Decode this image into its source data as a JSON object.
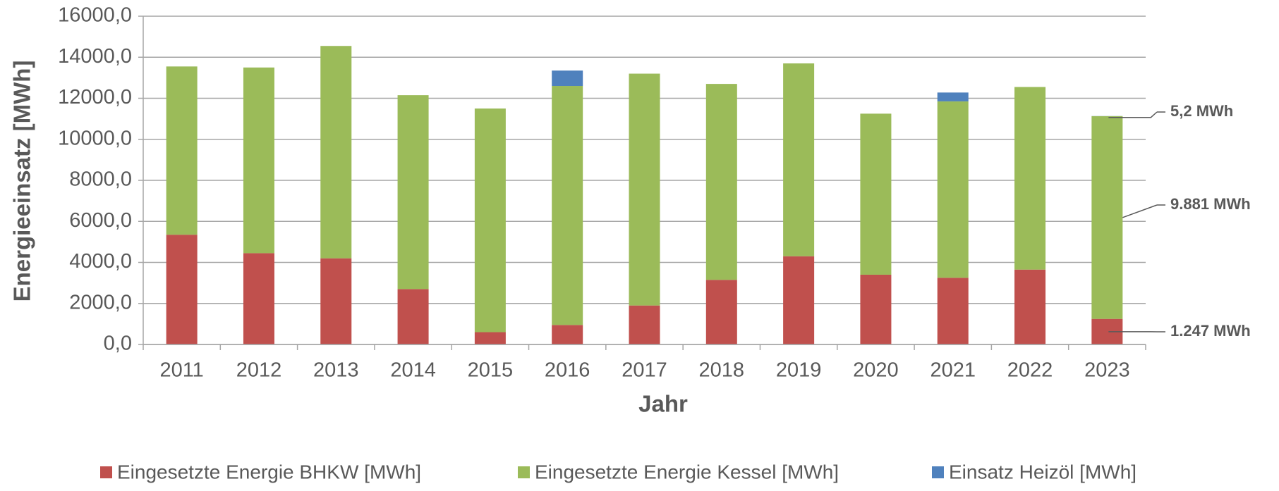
{
  "chart_data": {
    "type": "stacked_bar",
    "x_label": "Jahr",
    "y_label": "Energieeinsatz [MWh]",
    "categories": [
      "2011",
      "2012",
      "2013",
      "2014",
      "2015",
      "2016",
      "2017",
      "2018",
      "2019",
      "2020",
      "2021",
      "2022",
      "2023"
    ],
    "series": [
      {
        "name": "Eingesetzte Energie BHKW [MWh]",
        "color": "#c0504d",
        "values": [
          5350,
          4450,
          4200,
          2700,
          600,
          950,
          1900,
          3150,
          4300,
          3400,
          3250,
          3650,
          1247
        ],
        "value_labels": [
          null,
          null,
          null,
          null,
          null,
          null,
          null,
          null,
          null,
          null,
          null,
          null,
          "1.247 MWh"
        ]
      },
      {
        "name": "Eingesetzte Energie Kessel [MWh]",
        "color": "#9bbb59",
        "values": [
          8200,
          9050,
          10350,
          9450,
          10900,
          11650,
          11300,
          9550,
          9400,
          7850,
          8600,
          8900,
          9881
        ],
        "value_labels": [
          null,
          null,
          null,
          null,
          null,
          null,
          null,
          null,
          null,
          null,
          null,
          null,
          "9.881 MWh"
        ]
      },
      {
        "name": "Einsatz Heizöl [MWh]",
        "color": "#4f81bd",
        "values": [
          0,
          0,
          0,
          0,
          0,
          750,
          0,
          0,
          0,
          0,
          430,
          0,
          5.2
        ],
        "value_labels": [
          null,
          null,
          null,
          null,
          null,
          null,
          null,
          null,
          null,
          null,
          null,
          null,
          "5,2 MWh"
        ]
      }
    ],
    "ylim": [
      0,
      16000
    ],
    "yticks": [
      {
        "value": 0,
        "label": "0,0"
      },
      {
        "value": 2000,
        "label": "2000,0"
      },
      {
        "value": 4000,
        "label": "4000,0"
      },
      {
        "value": 6000,
        "label": "6000,0"
      },
      {
        "value": 8000,
        "label": "8000,0"
      },
      {
        "value": 10000,
        "label": "10000,0"
      },
      {
        "value": 12000,
        "label": "12000,0"
      },
      {
        "value": 14000,
        "label": "14000,0"
      },
      {
        "value": 16000,
        "label": "16000,0"
      }
    ],
    "grid": true,
    "legend": "bottom"
  }
}
